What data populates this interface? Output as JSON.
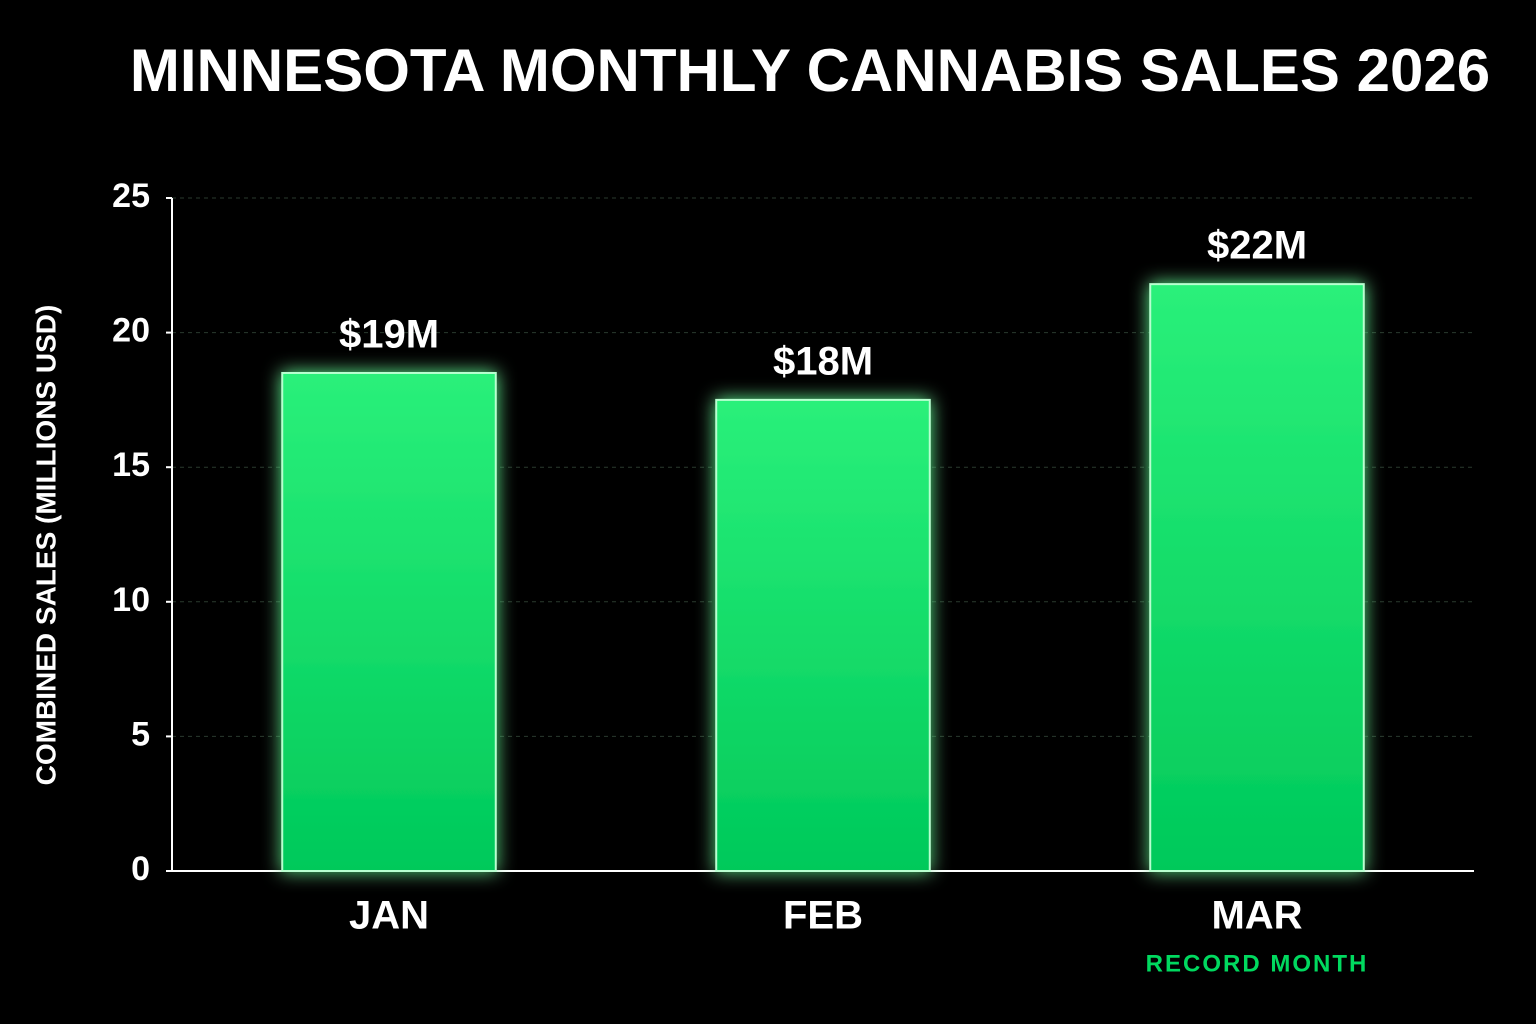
{
  "chart_data": {
    "type": "bar",
    "title": "MINNESOTA MONTHLY CANNABIS SALES 2026",
    "y_label": "COMBINED SALES (MILLIONS USD)",
    "categories": [
      "JAN",
      "FEB",
      "MAR"
    ],
    "values": [
      18.5,
      17.5,
      21.8
    ],
    "value_labels": [
      "$19M",
      "$18M",
      "$22M"
    ],
    "color": "#00d95f",
    "ylim": [
      0,
      25
    ],
    "yticks": [
      0,
      5,
      10,
      15,
      20,
      25
    ],
    "grid": true,
    "annotations": [
      {
        "text": "RECORD MONTH",
        "category": "MAR"
      }
    ]
  }
}
